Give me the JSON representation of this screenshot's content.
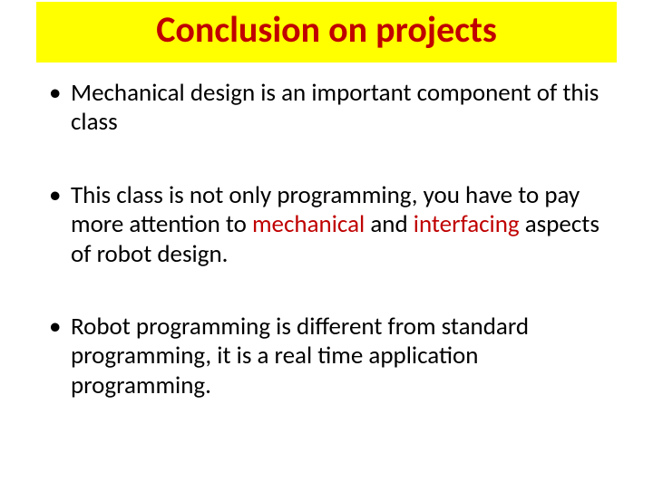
{
  "title": {
    "text": "Conclusion on projects",
    "background_color": "#ffff00",
    "text_color": "#c00000",
    "fontsize": 40,
    "fontweight": 700
  },
  "bullets": [
    {
      "pre": "Mechanical design is an important component of this class",
      "highlight1": "",
      "mid": "",
      "highlight2": "",
      "post": ""
    },
    {
      "pre": "This class is not only programming, you have to pay more attention to ",
      "highlight1": "mechanical",
      "mid": " and ",
      "highlight2": "interfacing",
      "post": " aspects of robot design."
    },
    {
      "pre": "Robot programming is different from standard programming, it is a real time application programming.",
      "highlight1": "",
      "mid": "",
      "highlight2": "",
      "post": ""
    }
  ],
  "highlight_color": "#c00000",
  "body_fontsize": 27,
  "background_color": "#ffffff"
}
